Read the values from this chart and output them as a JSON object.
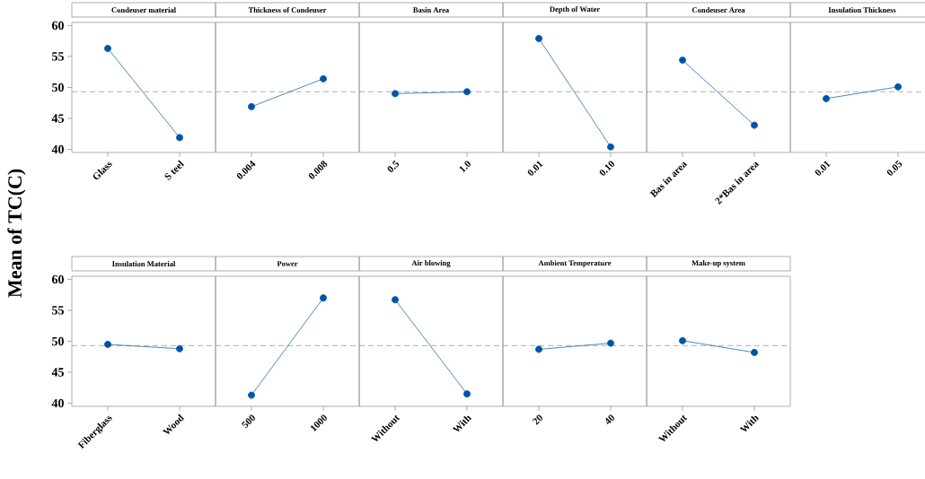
{
  "chart_data": [
    {
      "type": "line",
      "title": "Condeuser material",
      "ylabel": "Mean of TC(C)",
      "categories": [
        "Glass",
        "S teel"
      ],
      "values": [
        56.3,
        41.9
      ],
      "color": "#0054a6",
      "marker": "circle",
      "ylim": [
        39.5,
        60.5
      ],
      "yticks": [
        40,
        45,
        50,
        55,
        60
      ],
      "ref_lines": [
        {
          "axis": "y",
          "value": 49.3,
          "color": "#999999",
          "line_style": "dashed"
        }
      ]
    },
    {
      "type": "line",
      "title": "Thickness of Condeuser",
      "categories": [
        "0.004",
        "0.008"
      ],
      "values": [
        46.9,
        51.4
      ],
      "color": "#0054a6",
      "marker": "circle",
      "ylim": [
        39.5,
        60.5
      ],
      "tick_labels": "x",
      "ref_lines": [
        {
          "axis": "y",
          "value": 49.3,
          "color": "#999999",
          "line_style": "dashed"
        }
      ]
    },
    {
      "type": "line",
      "title": "Basin Area",
      "categories": [
        "0.5",
        "1.0"
      ],
      "values": [
        49.0,
        49.3
      ],
      "color": "#0054a6",
      "marker": "circle",
      "ylim": [
        39.5,
        60.5
      ],
      "tick_labels": "x",
      "ref_lines": [
        {
          "axis": "y",
          "value": 49.3,
          "color": "#999999",
          "line_style": "dashed"
        }
      ]
    },
    {
      "type": "line",
      "title": "Depth of Water",
      "categories": [
        "0.01",
        "0.10"
      ],
      "values": [
        57.9,
        40.4
      ],
      "color": "#0054a6",
      "marker": "circle",
      "ylim": [
        39.5,
        60.5
      ],
      "tick_labels": "x",
      "ref_lines": [
        {
          "axis": "y",
          "value": 49.3,
          "color": "#999999",
          "line_style": "dashed"
        }
      ]
    },
    {
      "type": "line",
      "title": "Condeuser Area",
      "categories": [
        "Bas in area",
        "2*Bas in area"
      ],
      "values": [
        54.4,
        43.9
      ],
      "color": "#0054a6",
      "marker": "circle",
      "ylim": [
        39.5,
        60.5
      ],
      "tick_labels": "x",
      "ref_lines": [
        {
          "axis": "y",
          "value": 49.3,
          "color": "#999999",
          "line_style": "dashed"
        }
      ]
    },
    {
      "type": "line",
      "title": "Insulation Thickness",
      "categories": [
        "0.01",
        "0.05"
      ],
      "values": [
        48.2,
        50.1
      ],
      "color": "#0054a6",
      "marker": "circle",
      "ylim": [
        39.5,
        60.5
      ],
      "tick_labels": "x",
      "ref_lines": [
        {
          "axis": "y",
          "value": 49.3,
          "color": "#999999",
          "line_style": "dashed"
        }
      ]
    },
    {
      "type": "line",
      "title": "Insulation Material",
      "categories": [
        "Fiberglass",
        "Wood"
      ],
      "values": [
        49.5,
        48.8
      ],
      "color": "#0054a6",
      "marker": "circle",
      "ylim": [
        39.5,
        60.5
      ],
      "yticks": [
        40,
        45,
        50,
        55,
        60
      ],
      "ref_lines": [
        {
          "axis": "y",
          "value": 49.3,
          "color": "#999999",
          "line_style": "dashed"
        }
      ]
    },
    {
      "type": "line",
      "title": "Power",
      "categories": [
        "500",
        "1000"
      ],
      "values": [
        41.3,
        57.0
      ],
      "color": "#0054a6",
      "marker": "circle",
      "ylim": [
        39.5,
        60.5
      ],
      "tick_labels": "x",
      "ref_lines": [
        {
          "axis": "y",
          "value": 49.3,
          "color": "#999999",
          "line_style": "dashed"
        }
      ]
    },
    {
      "type": "line",
      "title": "Air blowing",
      "categories": [
        "Without",
        "With"
      ],
      "values": [
        56.7,
        41.5
      ],
      "color": "#0054a6",
      "marker": "circle",
      "ylim": [
        39.5,
        60.5
      ],
      "tick_labels": "x",
      "ref_lines": [
        {
          "axis": "y",
          "value": 49.3,
          "color": "#999999",
          "line_style": "dashed"
        }
      ]
    },
    {
      "type": "line",
      "title": "Ambient Temperature",
      "categories": [
        "20",
        "40"
      ],
      "values": [
        48.7,
        49.7
      ],
      "color": "#0054a6",
      "marker": "circle",
      "ylim": [
        39.5,
        60.5
      ],
      "tick_labels": "x",
      "ref_lines": [
        {
          "axis": "y",
          "value": 49.3,
          "color": "#999999",
          "line_style": "dashed"
        }
      ]
    },
    {
      "type": "line",
      "title": "Make-up system",
      "categories": [
        "Without",
        "With"
      ],
      "values": [
        50.1,
        48.2
      ],
      "color": "#0054a6",
      "marker": "circle",
      "ylim": [
        39.5,
        60.5
      ],
      "tick_labels": "x",
      "ref_lines": [
        {
          "axis": "y",
          "value": 49.3,
          "color": "#999999",
          "line_style": "dashed"
        }
      ]
    }
  ]
}
